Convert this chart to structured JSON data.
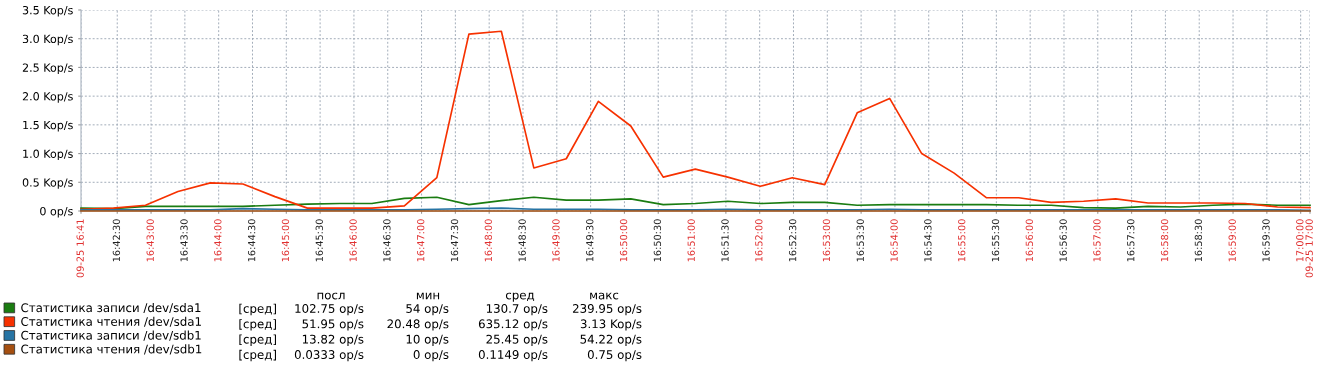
{
  "chart_data": {
    "type": "line",
    "x": [
      16.6994,
      16.7074,
      16.7153,
      16.7233,
      16.7313,
      16.7393,
      16.7472,
      16.7552,
      16.7632,
      16.7711,
      16.7791,
      16.7871,
      16.795,
      16.803,
      16.811,
      16.819,
      16.8269,
      16.8349,
      16.8429,
      16.8508,
      16.8588,
      16.8668,
      16.8747,
      16.8827,
      16.8907,
      16.8987,
      16.9066,
      16.9146,
      16.9226,
      16.9305,
      16.9385,
      16.9465,
      16.9544,
      16.9624,
      16.9704,
      16.9784,
      16.9863,
      16.9943,
      17.0023
    ],
    "series": [
      {
        "name": "Статистика записи /dev/sda1",
        "color": "#1a7c11",
        "values": [
          0.05,
          0.04,
          0.08,
          0.08,
          0.08,
          0.08,
          0.1,
          0.12,
          0.13,
          0.13,
          0.22,
          0.24,
          0.11,
          0.18,
          0.24,
          0.19,
          0.19,
          0.21,
          0.11,
          0.13,
          0.17,
          0.13,
          0.15,
          0.15,
          0.1,
          0.11,
          0.11,
          0.11,
          0.11,
          0.1,
          0.1,
          0.06,
          0.05,
          0.08,
          0.07,
          0.1,
          0.12,
          0.1,
          0.1
        ]
      },
      {
        "name": "Статистика чтения /dev/sda1",
        "color": "#f63100",
        "values": [
          0.03,
          0.05,
          0.1,
          0.34,
          0.49,
          0.47,
          0.25,
          0.05,
          0.05,
          0.05,
          0.09,
          0.58,
          3.08,
          3.13,
          0.75,
          0.91,
          1.91,
          1.48,
          0.59,
          0.73,
          0.59,
          0.43,
          0.58,
          0.46,
          1.71,
          1.96,
          1.0,
          0.66,
          0.23,
          0.23,
          0.15,
          0.17,
          0.21,
          0.14,
          0.14,
          0.14,
          0.13,
          0.07,
          0.06
        ]
      },
      {
        "name": "Статистика записи /dev/sdb1",
        "color": "#2774a4",
        "values": [
          0.02,
          0.02,
          0.02,
          0.02,
          0.02,
          0.04,
          0.03,
          0.02,
          0.02,
          0.02,
          0.02,
          0.03,
          0.04,
          0.05,
          0.03,
          0.03,
          0.03,
          0.02,
          0.02,
          0.02,
          0.03,
          0.02,
          0.02,
          0.02,
          0.02,
          0.03,
          0.02,
          0.02,
          0.02,
          0.02,
          0.02,
          0.02,
          0.02,
          0.02,
          0.02,
          0.02,
          0.02,
          0.02,
          0.01
        ]
      },
      {
        "name": "Статистика чтения /dev/sdb1",
        "color": "#a54f10",
        "values": [
          0,
          0,
          0,
          0,
          0,
          0,
          0,
          0,
          0,
          0,
          0,
          0,
          0,
          0,
          0,
          0,
          0,
          0,
          0,
          0,
          0,
          0,
          0,
          0,
          0,
          0,
          0,
          0,
          0,
          0,
          0,
          0,
          0,
          0,
          0,
          0,
          0,
          0,
          0
        ]
      }
    ],
    "xlim": [
      16.6994,
      17.0023
    ],
    "xticks": [
      {
        "value": 16.6994,
        "label": "09-25 16:41"
      },
      {
        "value": 16.708333,
        "label": "16:42:30"
      },
      {
        "value": 16.716667,
        "label": "16:43:00"
      },
      {
        "value": 16.725,
        "label": "16:43:30"
      },
      {
        "value": 16.733333,
        "label": "16:44:00"
      },
      {
        "value": 16.741667,
        "label": "16:44:30"
      },
      {
        "value": 16.75,
        "label": "16:45:00"
      },
      {
        "value": 16.758333,
        "label": "16:45:30"
      },
      {
        "value": 16.766667,
        "label": "16:46:00"
      },
      {
        "value": 16.775,
        "label": "16:46:30"
      },
      {
        "value": 16.783333,
        "label": "16:47:00"
      },
      {
        "value": 16.791667,
        "label": "16:47:30"
      },
      {
        "value": 16.8,
        "label": "16:48:00"
      },
      {
        "value": 16.808333,
        "label": "16:48:30"
      },
      {
        "value": 16.816667,
        "label": "16:49:00"
      },
      {
        "value": 16.825,
        "label": "16:49:30"
      },
      {
        "value": 16.833333,
        "label": "16:50:00"
      },
      {
        "value": 16.841667,
        "label": "16:50:30"
      },
      {
        "value": 16.85,
        "label": "16:51:00"
      },
      {
        "value": 16.858333,
        "label": "16:51:30"
      },
      {
        "value": 16.866667,
        "label": "16:52:00"
      },
      {
        "value": 16.875,
        "label": "16:52:30"
      },
      {
        "value": 16.883333,
        "label": "16:53:00"
      },
      {
        "value": 16.891667,
        "label": "16:53:30"
      },
      {
        "value": 16.9,
        "label": "16:54:00"
      },
      {
        "value": 16.908333,
        "label": "16:54:30"
      },
      {
        "value": 16.916667,
        "label": "16:55:00"
      },
      {
        "value": 16.925,
        "label": "16:55:30"
      },
      {
        "value": 16.933333,
        "label": "16:56:00"
      },
      {
        "value": 16.941667,
        "label": "16:56:30"
      },
      {
        "value": 16.95,
        "label": "16:57:00"
      },
      {
        "value": 16.958333,
        "label": "16:57:30"
      },
      {
        "value": 16.966667,
        "label": "16:58:00"
      },
      {
        "value": 16.975,
        "label": "16:58:30"
      },
      {
        "value": 16.983333,
        "label": "16:59:00"
      },
      {
        "value": 16.991667,
        "label": "16:59:30"
      },
      {
        "value": 17.0,
        "label": "17:00:00"
      },
      {
        "value": 17.0023,
        "label": "09-25 17:00"
      }
    ],
    "ylim": [
      0,
      3.5
    ],
    "yticks": [
      {
        "value": 0,
        "label": "0 op/s"
      },
      {
        "value": 0.5,
        "label": "0.5 Kop/s"
      },
      {
        "value": 1.0,
        "label": "1.0 Kop/s"
      },
      {
        "value": 1.5,
        "label": "1.5 Kop/s"
      },
      {
        "value": 2.0,
        "label": "2.0 Kop/s"
      },
      {
        "value": 2.5,
        "label": "2.5 Kop/s"
      },
      {
        "value": 3.0,
        "label": "3.0 Kop/s"
      },
      {
        "value": 3.5,
        "label": "3.5 Kop/s"
      }
    ],
    "grid": true,
    "legend": "bottom",
    "marker": "none",
    "line_style": "solid",
    "annotations": [
      "посл",
      "мин",
      "сред",
      "макс",
      "[сред]",
      "102.75 op/s",
      "54 op/s",
      "130.7 op/s",
      "239.95 op/s",
      "[сред]",
      "51.95 op/s",
      "20.48 op/s",
      "635.12 op/s",
      "3.13 Kop/s",
      "[сред]",
      "13.82 op/s",
      "10 op/s",
      "25.45 op/s",
      "54.22 op/s",
      "[сред]",
      "0.0333 op/s",
      "0 op/s",
      "0.1149 op/s",
      "0.75 op/s"
    ]
  }
}
